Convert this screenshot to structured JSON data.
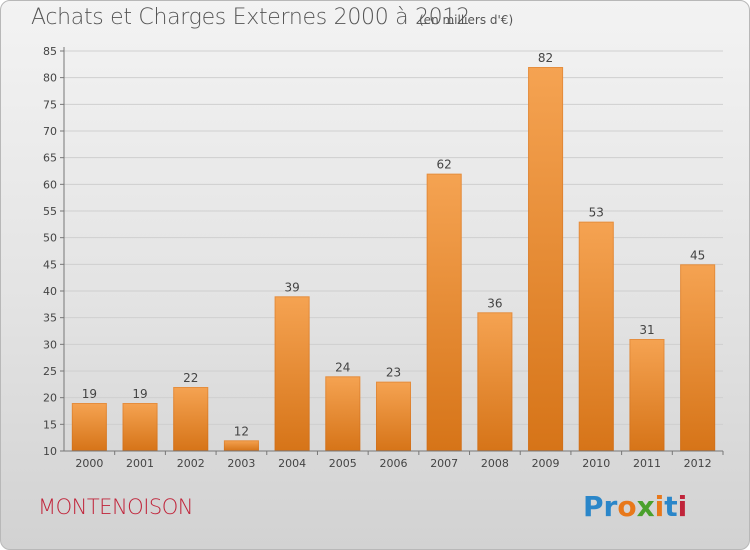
{
  "header": {
    "title": "Achats et Charges Externes 2000 à 2012",
    "subtitle": "(en milliers d'€)"
  },
  "footer": {
    "commune": "MONTENOISON",
    "logo": "Proxiti",
    "logo_colors": [
      "#2a86c9",
      "#2a86c9",
      "#e8781a",
      "#4aa02c",
      "#e8781a",
      "#2a86c9",
      "#c0243a"
    ]
  },
  "colors": {
    "bar_top": "#f5a352",
    "bar_bottom": "#d67418",
    "grid": "#cfcfcf",
    "axis": "#777777",
    "text": "#444444",
    "commune": "#c0243a"
  },
  "chart_data": {
    "type": "bar",
    "categories": [
      "2000",
      "2001",
      "2002",
      "2003",
      "2004",
      "2005",
      "2006",
      "2007",
      "2008",
      "2009",
      "2010",
      "2011",
      "2012"
    ],
    "values": [
      19,
      19,
      22,
      12,
      39,
      24,
      23,
      62,
      36,
      82,
      53,
      31,
      45
    ],
    "title": "Achats et Charges Externes 2000 à 2012",
    "ylim": [
      10,
      85
    ],
    "yticks": [
      10,
      15,
      20,
      25,
      30,
      35,
      40,
      45,
      50,
      55,
      60,
      65,
      70,
      75,
      80,
      85
    ],
    "grid": true,
    "data_labels": true
  }
}
